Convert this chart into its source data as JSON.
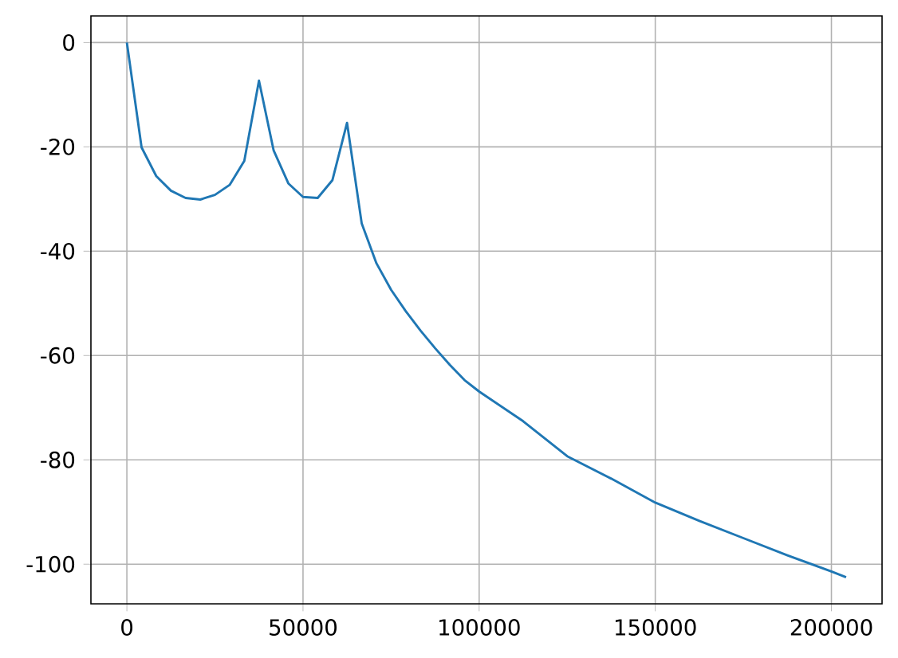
{
  "chart_data": {
    "type": "line",
    "x": [
      0,
      4167,
      8333,
      12500,
      16667,
      20833,
      25000,
      29167,
      33333,
      37500,
      41667,
      45833,
      50000,
      54167,
      58333,
      62500,
      66667,
      70833,
      75000,
      79167,
      83333,
      87500,
      91667,
      95833,
      100000,
      112500,
      125000,
      137500,
      150000,
      162500,
      175000,
      187500,
      200000,
      204167
    ],
    "series": [
      {
        "color": "#1f77b4",
        "values": [
          0,
          -20.1,
          -25.6,
          -28.4,
          -29.8,
          -30.1,
          -29.2,
          -27.3,
          -22.7,
          -7.3,
          -20.7,
          -27.0,
          -29.6,
          -29.8,
          -26.4,
          -15.4,
          -34.7,
          -42.3,
          -47.4,
          -51.5,
          -55.2,
          -58.6,
          -61.8,
          -64.7,
          -66.9,
          -72.6,
          -79.3,
          -83.6,
          -88.2,
          -91.7,
          -95.0,
          -98.3,
          -101.4,
          -102.5
        ]
      }
    ],
    "xlim": [
      -10208,
      214375
    ],
    "ylim": [
      -107.6,
      5.1
    ],
    "xticks": [
      0,
      50000,
      100000,
      150000,
      200000
    ],
    "yticks": [
      -100,
      -80,
      -60,
      -40,
      -20,
      0
    ],
    "grid": true
  }
}
